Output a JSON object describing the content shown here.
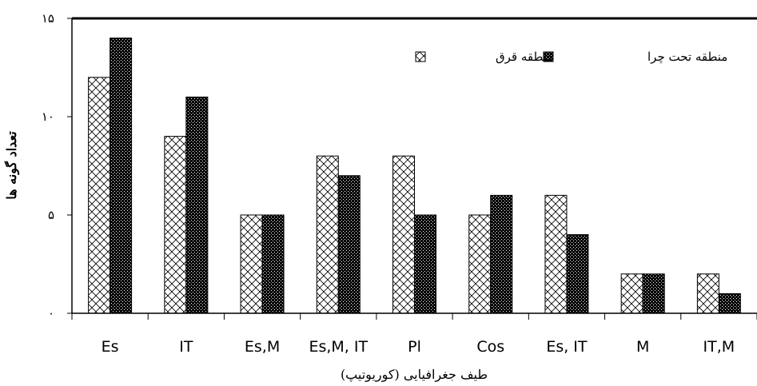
{
  "chart_data": {
    "type": "bar",
    "categories": [
      "Es",
      "IT",
      "Es,M",
      "Es,M, IT",
      "Pl",
      "Cos",
      "Es, IT",
      "M",
      "IT,M"
    ],
    "series": [
      {
        "name": "منطقه قرق",
        "values": [
          12,
          9,
          5,
          8,
          8,
          5,
          6,
          2,
          2
        ],
        "pattern": "diagonal-cross",
        "color": "#ffffff"
      },
      {
        "name": "منطقه تحت چرا",
        "values": [
          14,
          11,
          5,
          7,
          5,
          6,
          4,
          2,
          1
        ],
        "pattern": "dots",
        "color": "#000000"
      }
    ],
    "title": "",
    "xlabel": "طیف جغرافیایی (کوریوتیپ)",
    "ylabel": "تعداد گونه ها",
    "ylim": [
      0,
      15
    ],
    "yticks": [
      0,
      5,
      10,
      15
    ],
    "ytick_labels": [
      "۰",
      "۵",
      "۱۰",
      "۱۵"
    ],
    "grid": false,
    "legend_position": "top-right"
  }
}
